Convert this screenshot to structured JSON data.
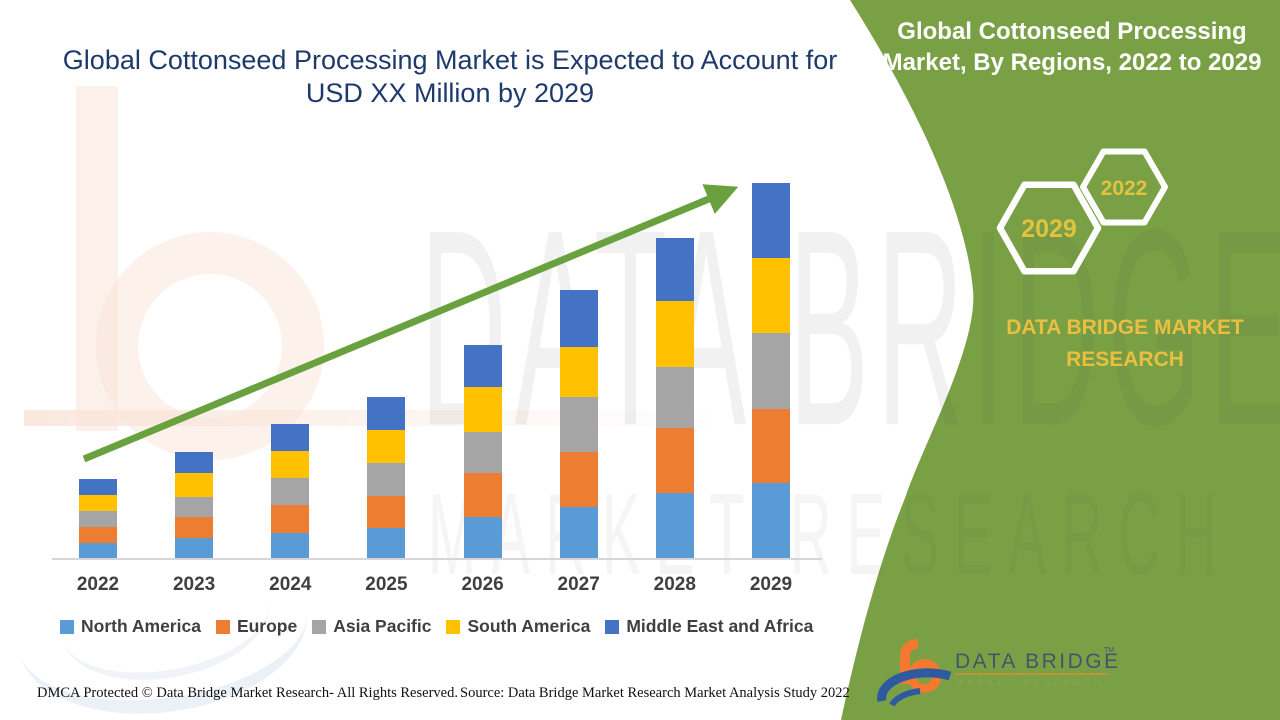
{
  "main": {
    "title_lines": [
      "Global Cottonseed Processing Market is Expected to Account for",
      "USD XX Million by 2029"
    ],
    "footer_left": "DMCA Protected © Data Bridge Market Research- All Rights Reserved.",
    "footer_source": "Source: Data Bridge Market Research Market Analysis Study 2022"
  },
  "watermark": {
    "line1": "DATA BRIDGE",
    "line2": "MARKET RESEARCH"
  },
  "panel": {
    "title_lines": [
      "Global Cottonseed Processing",
      "Market, By Regions, 2022 to 2029"
    ],
    "hexagons": [
      {
        "label": "2029"
      },
      {
        "label": "2022"
      }
    ],
    "brand_lines": [
      "DATA BRIDGE MARKET",
      "RESEARCH"
    ],
    "logo": {
      "name": "DATA BRIDGE",
      "tm": "TM",
      "subtitle": "MARKET RESEARCH"
    },
    "colors": {
      "background": "#7aa045",
      "accent_gold": "#eabf41",
      "hex_year": "#e2c23e"
    }
  },
  "chart_data": {
    "type": "bar",
    "stacked": true,
    "title": "Global Cottonseed Processing Market is Expected to Account for USD XX Million by 2029",
    "xlabel": "",
    "ylabel": "",
    "units": "relative units (value axis not shown; market sized as USD XX Million)",
    "grid": false,
    "legend_position": "bottom",
    "trend_arrow": true,
    "categories": [
      "2022",
      "2023",
      "2024",
      "2025",
      "2026",
      "2027",
      "2028",
      "2029"
    ],
    "series": [
      {
        "name": "North America",
        "color": "#5B9BD5",
        "values": [
          16,
          21,
          26,
          31,
          42,
          52,
          66,
          76
        ]
      },
      {
        "name": "Europe",
        "color": "#ED7D31",
        "values": [
          16,
          21,
          28,
          32,
          44,
          55,
          65,
          74
        ]
      },
      {
        "name": "Asia Pacific",
        "color": "#A5A5A5",
        "values": [
          16,
          20,
          27,
          33,
          41,
          55,
          61,
          76
        ]
      },
      {
        "name": "South America",
        "color": "#FFC000",
        "values": [
          16,
          24,
          27,
          33,
          45,
          50,
          66,
          75
        ]
      },
      {
        "name": "Middle East and Africa",
        "color": "#4472C4",
        "values": [
          16,
          21,
          27,
          33,
          42,
          57,
          63,
          75
        ]
      }
    ],
    "totals": [
      80,
      107,
      135,
      162,
      214,
      269,
      321,
      376
    ]
  }
}
